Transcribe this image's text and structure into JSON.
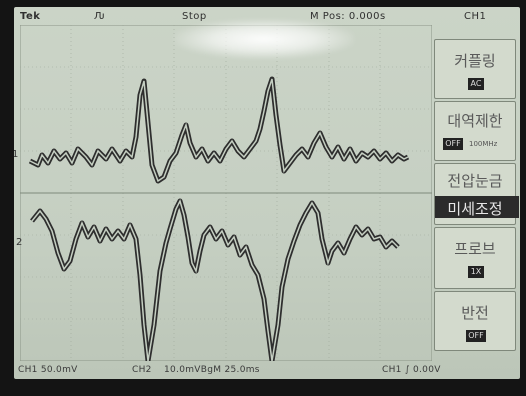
{
  "header": {
    "brand": "Tek",
    "trigger_state": "Ԉ",
    "status": "Stop",
    "position": "M Pos: 0.000s",
    "channel": "CH1"
  },
  "footer": {
    "ch1_scale": "CH1  50.0mV",
    "ch2_label": "CH2",
    "time_scale": "10.0mVBgM  25.0ms",
    "trigger": "CH1  ∫  0.00V"
  },
  "markers": {
    "ch1": "1",
    "ch2": "2"
  },
  "menu": {
    "items": [
      {
        "label": "커플링",
        "badge": "AC"
      },
      {
        "label": "대역제한",
        "badge": "OFF",
        "sub": "100MHz"
      },
      {
        "label": "전압눈금",
        "dark_label": "미세조정"
      },
      {
        "label": "프로브",
        "badge": "1X"
      },
      {
        "label": "반전",
        "badge": "OFF"
      }
    ]
  }
}
